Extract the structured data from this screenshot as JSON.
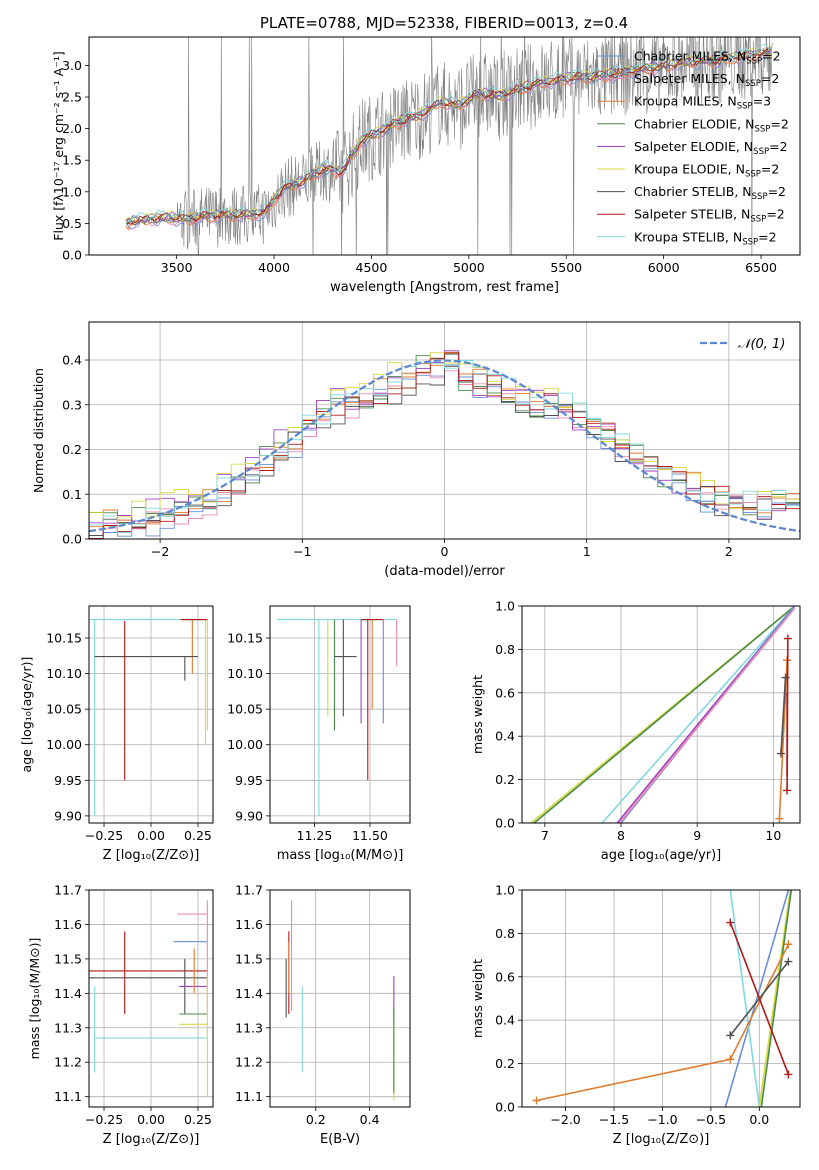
{
  "figure": {
    "title": "PLATE=0788, MJD=52338, FIBERID=0013, z=0.4"
  },
  "colors": {
    "chabrier_miles": "#6b8fd6",
    "salpeter_miles": "#f08ab0",
    "kroupa_miles": "#e07b2e",
    "chabrier_elodie": "#4a8a4a",
    "salpeter_elodie": "#a040c0",
    "kroupa_elodie": "#d8d840",
    "chabrier_stelib": "#505050",
    "salpeter_stelib": "#b01818",
    "kroupa_stelib": "#80d8e0",
    "data": "#808080",
    "normal": "#5b86d0"
  },
  "chart_data": [
    {
      "id": "spectrum",
      "type": "line",
      "xlabel": "wavelength [Angstrom, rest frame]",
      "ylabel": "Flux [fλ10⁻¹⁷ erg cm⁻² s⁻¹ A⁻¹]",
      "xlim": [
        3050,
        6700
      ],
      "ylim": [
        0,
        3.45
      ],
      "xticks": [
        "3500",
        "4000",
        "4500",
        "5000",
        "5500",
        "6000",
        "6500"
      ],
      "yticks": [
        "0.0",
        "0.5",
        "1.0",
        "1.5",
        "2.0",
        "2.5",
        "3.0"
      ],
      "legend": [
        "Chabrier MILES, N_SSP=2",
        "Salpeter MILES, N_SSP=2",
        "Kroupa MILES, N_SSP=3",
        "Chabrier ELODIE, N_SSP=2",
        "Salpeter ELODIE, N_SSP=2",
        "Kroupa ELODIE, N_SSP=2",
        "Chabrier STELIB, N_SSP=2",
        "Salpeter STELIB, N_SSP=2",
        "Kroupa STELIB, N_SSP=2"
      ],
      "continuum": {
        "x": [
          3250,
          3350,
          3450,
          3550,
          3650,
          3750,
          3850,
          3950,
          4050,
          4150,
          4250,
          4350,
          4450,
          4550,
          4650,
          4750,
          4850,
          4950,
          5050,
          5150,
          5250,
          5350,
          5450,
          5550,
          5650,
          5750,
          5850,
          5950,
          6050,
          6150,
          6250,
          6350,
          6450,
          6550
        ],
        "y": [
          0.5,
          0.55,
          0.58,
          0.55,
          0.6,
          0.62,
          0.62,
          0.65,
          1.05,
          1.15,
          1.35,
          1.3,
          1.8,
          1.95,
          2.1,
          2.2,
          2.4,
          2.35,
          2.55,
          2.5,
          2.6,
          2.7,
          2.75,
          2.8,
          2.8,
          2.85,
          2.9,
          2.95,
          3.0,
          3.05,
          3.05,
          3.1,
          3.15,
          3.2
        ]
      }
    },
    {
      "id": "residuals",
      "type": "line",
      "xlabel": "(data-model)/error",
      "ylabel": "Normed distribution",
      "xlim": [
        -2.5,
        2.5
      ],
      "ylim": [
        0,
        0.485
      ],
      "xticks": [
        "−2",
        "−1",
        "0",
        "1",
        "2"
      ],
      "yticks": [
        "0.0",
        "0.1",
        "0.2",
        "0.3",
        "0.4"
      ],
      "legend": [
        "𝒩(0, 1)"
      ],
      "histogram": {
        "x": [
          -2.5,
          -2.4,
          -2.3,
          -2.2,
          -2.1,
          -2.0,
          -1.9,
          -1.8,
          -1.7,
          -1.6,
          -1.5,
          -1.4,
          -1.3,
          -1.2,
          -1.1,
          -1.0,
          -0.9,
          -0.8,
          -0.7,
          -0.6,
          -0.5,
          -0.4,
          -0.3,
          -0.2,
          -0.1,
          0.0,
          0.1,
          0.2,
          0.3,
          0.4,
          0.5,
          0.6,
          0.7,
          0.8,
          0.9,
          1.0,
          1.1,
          1.2,
          1.3,
          1.4,
          1.5,
          1.6,
          1.7,
          1.8,
          1.9,
          2.0,
          2.1,
          2.2,
          2.3,
          2.4
        ],
        "y": [
          0.02,
          0.025,
          0.03,
          0.035,
          0.04,
          0.05,
          0.06,
          0.07,
          0.08,
          0.1,
          0.12,
          0.14,
          0.17,
          0.2,
          0.22,
          0.25,
          0.27,
          0.29,
          0.3,
          0.31,
          0.33,
          0.34,
          0.35,
          0.37,
          0.38,
          0.4,
          0.36,
          0.35,
          0.34,
          0.33,
          0.32,
          0.31,
          0.3,
          0.29,
          0.27,
          0.25,
          0.23,
          0.21,
          0.19,
          0.17,
          0.15,
          0.13,
          0.12,
          0.1,
          0.09,
          0.08,
          0.07,
          0.07,
          0.08,
          0.09
        ]
      }
    },
    {
      "id": "age_vs_Z",
      "type": "scatter",
      "xlabel": "Z [log₁₀(Z/Z⊙)]",
      "ylabel": "age  [log₁₀(age/yr)]",
      "xlim": [
        -0.33,
        0.33
      ],
      "ylim": [
        9.89,
        10.195
      ],
      "xticks": [
        "−0.25",
        "0.00",
        "0.25"
      ],
      "yticks": [
        "9.90",
        "9.95",
        "10.00",
        "10.05",
        "10.10",
        "10.15"
      ]
    },
    {
      "id": "age_vs_mass",
      "type": "scatter",
      "xlabel": "mass [log₁₀(M/M⊙)]",
      "ylabel": "",
      "xlim": [
        11.05,
        11.68
      ],
      "ylim": [
        9.89,
        10.195
      ],
      "xticks": [
        "11.25",
        "11.50"
      ],
      "yticks": [
        "9.90",
        "9.95",
        "10.00",
        "10.05",
        "10.10",
        "10.15"
      ]
    },
    {
      "id": "weight_vs_age",
      "type": "line",
      "xlabel": "age  [log₁₀(age/yr)]",
      "ylabel": "mass weight",
      "xlim": [
        6.7,
        10.35
      ],
      "ylim": [
        0,
        1
      ],
      "xticks": [
        "7",
        "8",
        "9",
        "10"
      ],
      "yticks": [
        "0.0",
        "0.2",
        "0.4",
        "0.6",
        "0.8",
        "1.0"
      ]
    },
    {
      "id": "mass_vs_Z",
      "type": "scatter",
      "xlabel": "Z [log₁₀(Z/Z⊙)]",
      "ylabel": "mass [log₁₀(M/M⊙)]",
      "xlim": [
        -0.33,
        0.33
      ],
      "ylim": [
        11.07,
        11.7
      ],
      "xticks": [
        "−0.25",
        "0.00",
        "0.25"
      ],
      "yticks": [
        "11.1",
        "11.2",
        "11.3",
        "11.4",
        "11.5",
        "11.6",
        "11.7"
      ]
    },
    {
      "id": "mass_vs_EBV",
      "type": "scatter",
      "xlabel": "E(B-V)",
      "ylabel": "",
      "xlim": [
        0.03,
        0.55
      ],
      "ylim": [
        11.07,
        11.7
      ],
      "xticks": [
        "0.2",
        "0.4"
      ],
      "yticks": [
        "11.1",
        "11.2",
        "11.3",
        "11.4",
        "11.5",
        "11.6",
        "11.7"
      ]
    },
    {
      "id": "weight_vs_Z",
      "type": "line",
      "xlabel": "Z [log₁₀(Z/Z⊙)]",
      "ylabel": "mass weight",
      "xlim": [
        -2.45,
        0.42
      ],
      "ylim": [
        0,
        1
      ],
      "xticks": [
        "−2.0",
        "−1.5",
        "−1.0",
        "−0.5",
        "0.0"
      ],
      "yticks": [
        "0.0",
        "0.2",
        "0.4",
        "0.6",
        "0.8",
        "1.0"
      ]
    }
  ]
}
